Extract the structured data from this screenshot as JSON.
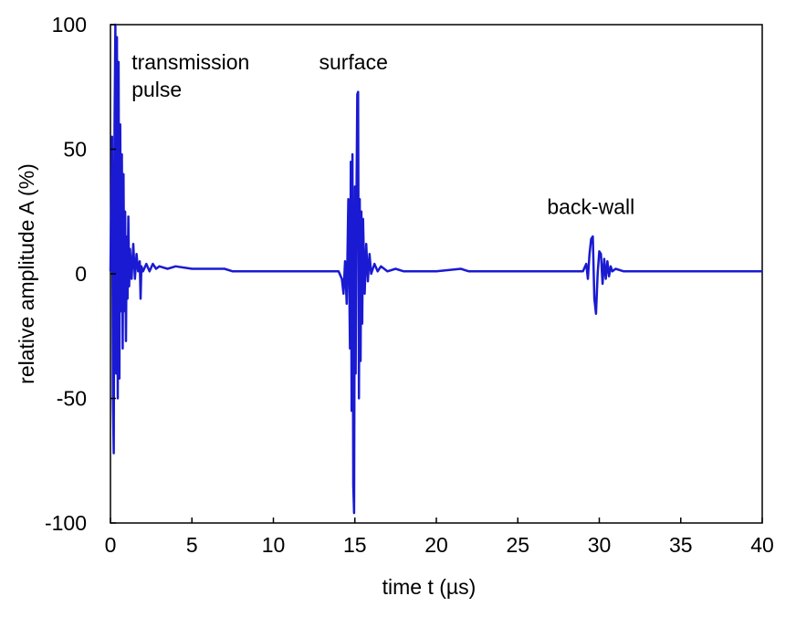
{
  "chart_data": {
    "type": "line",
    "title": "",
    "xlabel": "time  t (µs)",
    "ylabel": "relative amplitude  A (%)",
    "xlim": [
      0,
      40
    ],
    "ylim": [
      -100,
      100
    ],
    "xticks": [
      0,
      5,
      10,
      15,
      20,
      25,
      30,
      35,
      40
    ],
    "yticks": [
      -100,
      -50,
      0,
      50,
      100
    ],
    "grid": false,
    "line_color": "#1a1ad2",
    "annotations": [
      {
        "id": "transmission",
        "lines": [
          "transmission",
          "pulse"
        ],
        "x": 1.3,
        "y": 82
      },
      {
        "id": "surface",
        "lines": [
          "surface"
        ],
        "x": 12.8,
        "y": 82
      },
      {
        "id": "backwall",
        "lines": [
          "back-wall"
        ],
        "x": 26.8,
        "y": 24
      }
    ],
    "series": [
      {
        "values": [
          [
            0.0,
            1
          ],
          [
            0.1,
            55
          ],
          [
            0.15,
            -50
          ],
          [
            0.2,
            -72
          ],
          [
            0.25,
            60
          ],
          [
            0.3,
            100
          ],
          [
            0.35,
            -40
          ],
          [
            0.4,
            95
          ],
          [
            0.45,
            -50
          ],
          [
            0.5,
            85
          ],
          [
            0.55,
            -42
          ],
          [
            0.6,
            60
          ],
          [
            0.65,
            -15
          ],
          [
            0.7,
            48
          ],
          [
            0.75,
            -30
          ],
          [
            0.8,
            40
          ],
          [
            0.85,
            -15
          ],
          [
            0.9,
            25
          ],
          [
            0.95,
            -27
          ],
          [
            1.0,
            15
          ],
          [
            1.05,
            -10
          ],
          [
            1.1,
            23
          ],
          [
            1.15,
            -5
          ],
          [
            1.2,
            10
          ],
          [
            1.3,
            -2
          ],
          [
            1.4,
            12
          ],
          [
            1.5,
            -2
          ],
          [
            1.6,
            8
          ],
          [
            1.7,
            1
          ],
          [
            1.8,
            5
          ],
          [
            1.85,
            -10
          ],
          [
            1.9,
            3
          ],
          [
            2.0,
            1
          ],
          [
            2.2,
            4
          ],
          [
            2.4,
            1
          ],
          [
            2.6,
            4
          ],
          [
            2.8,
            2
          ],
          [
            3.0,
            3
          ],
          [
            3.5,
            2
          ],
          [
            4.0,
            3
          ],
          [
            5.0,
            2
          ],
          [
            6.0,
            2
          ],
          [
            7.0,
            2
          ],
          [
            7.5,
            1
          ],
          [
            8.0,
            1
          ],
          [
            10.0,
            1
          ],
          [
            12.0,
            1
          ],
          [
            14.0,
            1
          ],
          [
            14.2,
            -2
          ],
          [
            14.3,
            -8
          ],
          [
            14.4,
            5
          ],
          [
            14.5,
            -12
          ],
          [
            14.6,
            30
          ],
          [
            14.7,
            -30
          ],
          [
            14.75,
            45
          ],
          [
            14.8,
            -55
          ],
          [
            14.85,
            48
          ],
          [
            14.9,
            -85
          ],
          [
            14.95,
            -96
          ],
          [
            15.0,
            35
          ],
          [
            15.05,
            -40
          ],
          [
            15.1,
            30
          ],
          [
            15.15,
            72
          ],
          [
            15.2,
            73
          ],
          [
            15.25,
            -50
          ],
          [
            15.3,
            30
          ],
          [
            15.35,
            -35
          ],
          [
            15.4,
            25
          ],
          [
            15.45,
            -20
          ],
          [
            15.5,
            22
          ],
          [
            15.6,
            -8
          ],
          [
            15.7,
            12
          ],
          [
            15.8,
            -3
          ],
          [
            15.9,
            8
          ],
          [
            16.0,
            0
          ],
          [
            16.2,
            4
          ],
          [
            16.4,
            1
          ],
          [
            16.6,
            3
          ],
          [
            17.0,
            1
          ],
          [
            17.5,
            2
          ],
          [
            18.0,
            1
          ],
          [
            20.0,
            1
          ],
          [
            21.5,
            2
          ],
          [
            22.0,
            1
          ],
          [
            25.0,
            1
          ],
          [
            29.0,
            1
          ],
          [
            29.2,
            4
          ],
          [
            29.3,
            -2
          ],
          [
            29.4,
            8
          ],
          [
            29.5,
            14
          ],
          [
            29.6,
            15
          ],
          [
            29.7,
            -10
          ],
          [
            29.8,
            -16
          ],
          [
            29.9,
            0
          ],
          [
            30.0,
            9
          ],
          [
            30.1,
            8
          ],
          [
            30.2,
            -4
          ],
          [
            30.3,
            6
          ],
          [
            30.4,
            -2
          ],
          [
            30.5,
            5
          ],
          [
            30.6,
            -1
          ],
          [
            30.7,
            3
          ],
          [
            30.8,
            1
          ],
          [
            31.0,
            2
          ],
          [
            31.5,
            1
          ],
          [
            32.0,
            1
          ],
          [
            35.0,
            1
          ],
          [
            40.0,
            1
          ]
        ]
      }
    ]
  }
}
